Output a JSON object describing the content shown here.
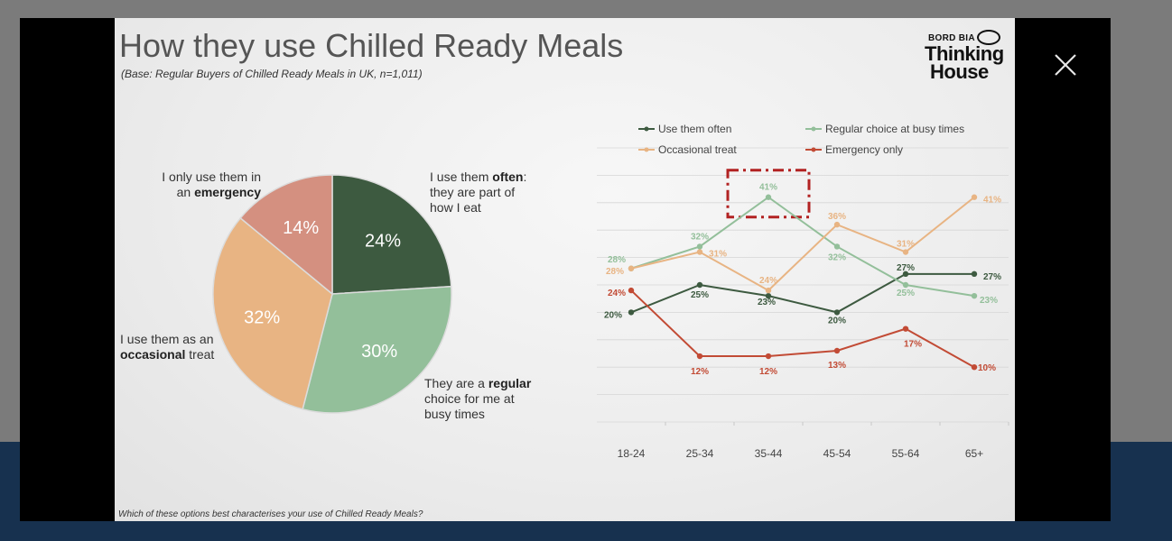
{
  "slide": {
    "title": "How they use Chilled Ready Meals",
    "subtitle": "(Base: Regular Buyers of Chilled Ready Meals in UK, n=1,011)",
    "footnote": "Which of these options best characterises your use of Chilled Ready Meals?",
    "logo": {
      "top": "BORD BIA",
      "line1": "Thinking",
      "line2": "House"
    }
  },
  "pie_labels": {
    "often": {
      "pre": "I use them ",
      "bold": "often",
      "post": ": they are part of how I eat"
    },
    "busy": {
      "pre": "They are a ",
      "bold": "regular",
      "post": " choice for me at busy times"
    },
    "treat": {
      "pre": "I use them as an ",
      "bold": "occasional",
      "post": " treat"
    },
    "emergency": {
      "pre": "I only use them in an ",
      "bold": "emergency",
      "post": ""
    }
  },
  "colors": {
    "often": "#3d5a40",
    "busy": "#93bf9a",
    "treat": "#e8b483",
    "emergency": "#d49080",
    "emergency_line": "#c24b35",
    "highlight": "#b22222"
  },
  "icons": {
    "close": "close-icon",
    "logo": "thinking-house-logo"
  },
  "chart_data": [
    {
      "type": "pie",
      "slices": [
        {
          "key": "often",
          "value": 24,
          "label": "24%"
        },
        {
          "key": "busy",
          "value": 30,
          "label": "30%"
        },
        {
          "key": "treat",
          "value": 32,
          "label": "32%"
        },
        {
          "key": "emergency",
          "value": 14,
          "label": "14%"
        }
      ]
    },
    {
      "type": "line",
      "categories": [
        "18-24",
        "25-34",
        "35-44",
        "45-54",
        "55-64",
        "65+"
      ],
      "ylim": [
        0,
        50
      ],
      "grid": true,
      "legend_position": "top",
      "series": [
        {
          "key": "often",
          "name": "Use them often",
          "values": [
            20,
            25,
            23,
            20,
            27,
            27
          ],
          "labels": [
            "20%",
            "25%",
            "23%",
            "20%",
            "27%",
            "27%"
          ]
        },
        {
          "key": "busy",
          "name": "Regular choice at busy times",
          "values": [
            28,
            32,
            41,
            32,
            25,
            23
          ],
          "labels": [
            "28%",
            "32%",
            "41%",
            "32%",
            "25%",
            "23%"
          ]
        },
        {
          "key": "treat",
          "name": "Occasional treat",
          "values": [
            28,
            31,
            24,
            36,
            31,
            41
          ],
          "labels": [
            "28%",
            "31%",
            "24%",
            "36%",
            "31%",
            "41%"
          ]
        },
        {
          "key": "emergency",
          "name": "Emergency only",
          "values": [
            24,
            12,
            12,
            13,
            17,
            10
          ],
          "labels": [
            "24%",
            "12%",
            "12%",
            "13%",
            "17%",
            "10%"
          ]
        }
      ],
      "highlight": {
        "category": "35-44",
        "series": "busy"
      }
    }
  ]
}
